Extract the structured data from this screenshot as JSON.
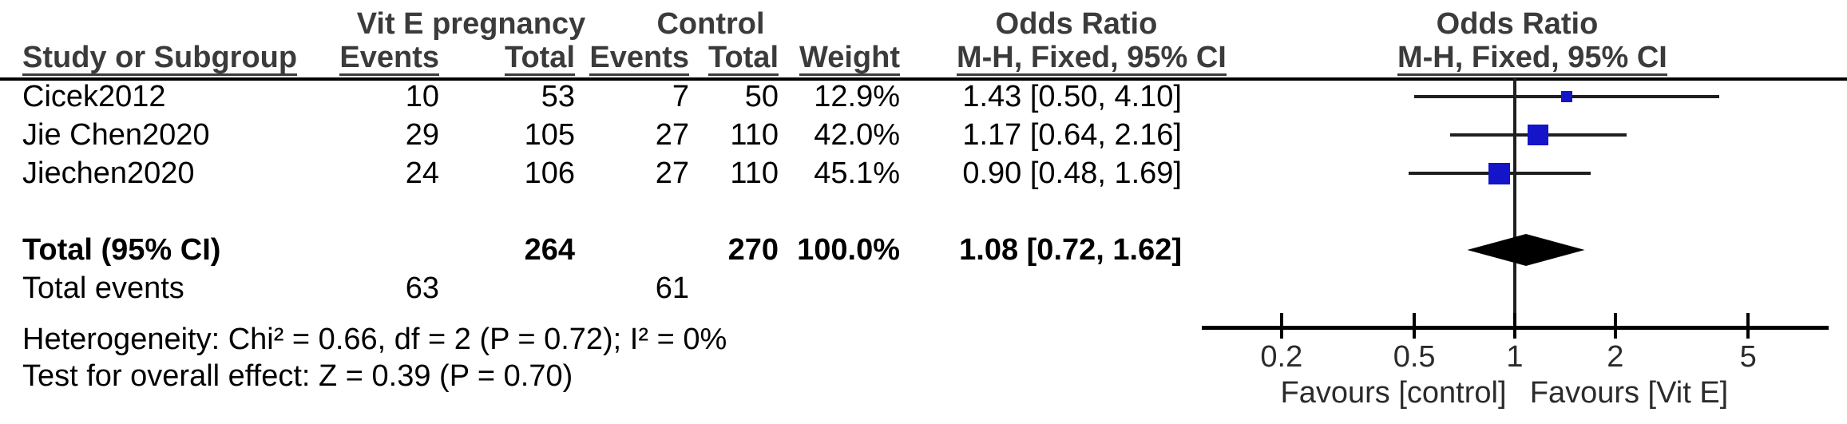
{
  "header": {
    "group_experimental": "Vit E pregnancy",
    "group_control": "Control",
    "or_table_line1": "Odds Ratio",
    "or_table_line2": "M-H, Fixed, 95% CI",
    "or_plot_line1": "Odds Ratio",
    "or_plot_line2": "M-H, Fixed, 95% CI",
    "col_study": "Study or Subgroup",
    "col_events_e": "Events",
    "col_total_e": "Total",
    "col_events_c": "Events",
    "col_total_c": "Total",
    "col_weight": "Weight"
  },
  "rows": [
    {
      "study": "Cicek2012",
      "events_e": "10",
      "total_e": "53",
      "events_c": "7",
      "total_c": "50",
      "weight": "12.9%",
      "ci": "1.43 [0.50, 4.10]"
    },
    {
      "study": "Jie Chen2020",
      "events_e": "29",
      "total_e": "105",
      "events_c": "27",
      "total_c": "110",
      "weight": "42.0%",
      "ci": "1.17 [0.64, 2.16]"
    },
    {
      "study": "Jiechen2020",
      "events_e": "24",
      "total_e": "106",
      "events_c": "27",
      "total_c": "110",
      "weight": "45.1%",
      "ci": "0.90 [0.48, 1.69]"
    }
  ],
  "total_row": {
    "label": "Total (95% CI)",
    "total_e": "264",
    "total_c": "270",
    "weight": "100.0%",
    "ci": "1.08 [0.72, 1.62]"
  },
  "total_events_row": {
    "label": "Total events",
    "events_e": "63",
    "events_c": "61"
  },
  "stats": {
    "heterogeneity": "Heterogeneity: Chi² = 0.66, df = 2 (P = 0.72); I² = 0%",
    "overall_effect": "Test for overall effect: Z = 0.39 (P = 0.70)"
  },
  "chart_data": {
    "type": "scatter",
    "subtype": "forest-plot",
    "scale": "log",
    "x_ticks": [
      0.2,
      0.5,
      1,
      2,
      5
    ],
    "x_range": [
      0.115,
      8.7
    ],
    "null_line_at": 1,
    "x_axis_labels": {
      "left": "Favours [control]",
      "right": "Favours [Vit E]"
    },
    "effect_measure": "Odds Ratio, M-H, Fixed, 95% CI",
    "studies": [
      {
        "name": "Cicek2012",
        "or": 1.43,
        "ci_low": 0.5,
        "ci_high": 4.1,
        "weight_pct": 12.9
      },
      {
        "name": "Jie Chen2020",
        "or": 1.17,
        "ci_low": 0.64,
        "ci_high": 2.16,
        "weight_pct": 42.0
      },
      {
        "name": "Jiechen2020",
        "or": 0.9,
        "ci_low": 0.48,
        "ci_high": 1.69,
        "weight_pct": 45.1
      }
    ],
    "total": {
      "name": "Total (95% CI)",
      "or": 1.08,
      "ci_low": 0.72,
      "ci_high": 1.62,
      "weight_pct": 100.0
    },
    "marker_color": "#1414C8",
    "diamond_color": "#000000",
    "line_color": "#1f1f1f"
  }
}
